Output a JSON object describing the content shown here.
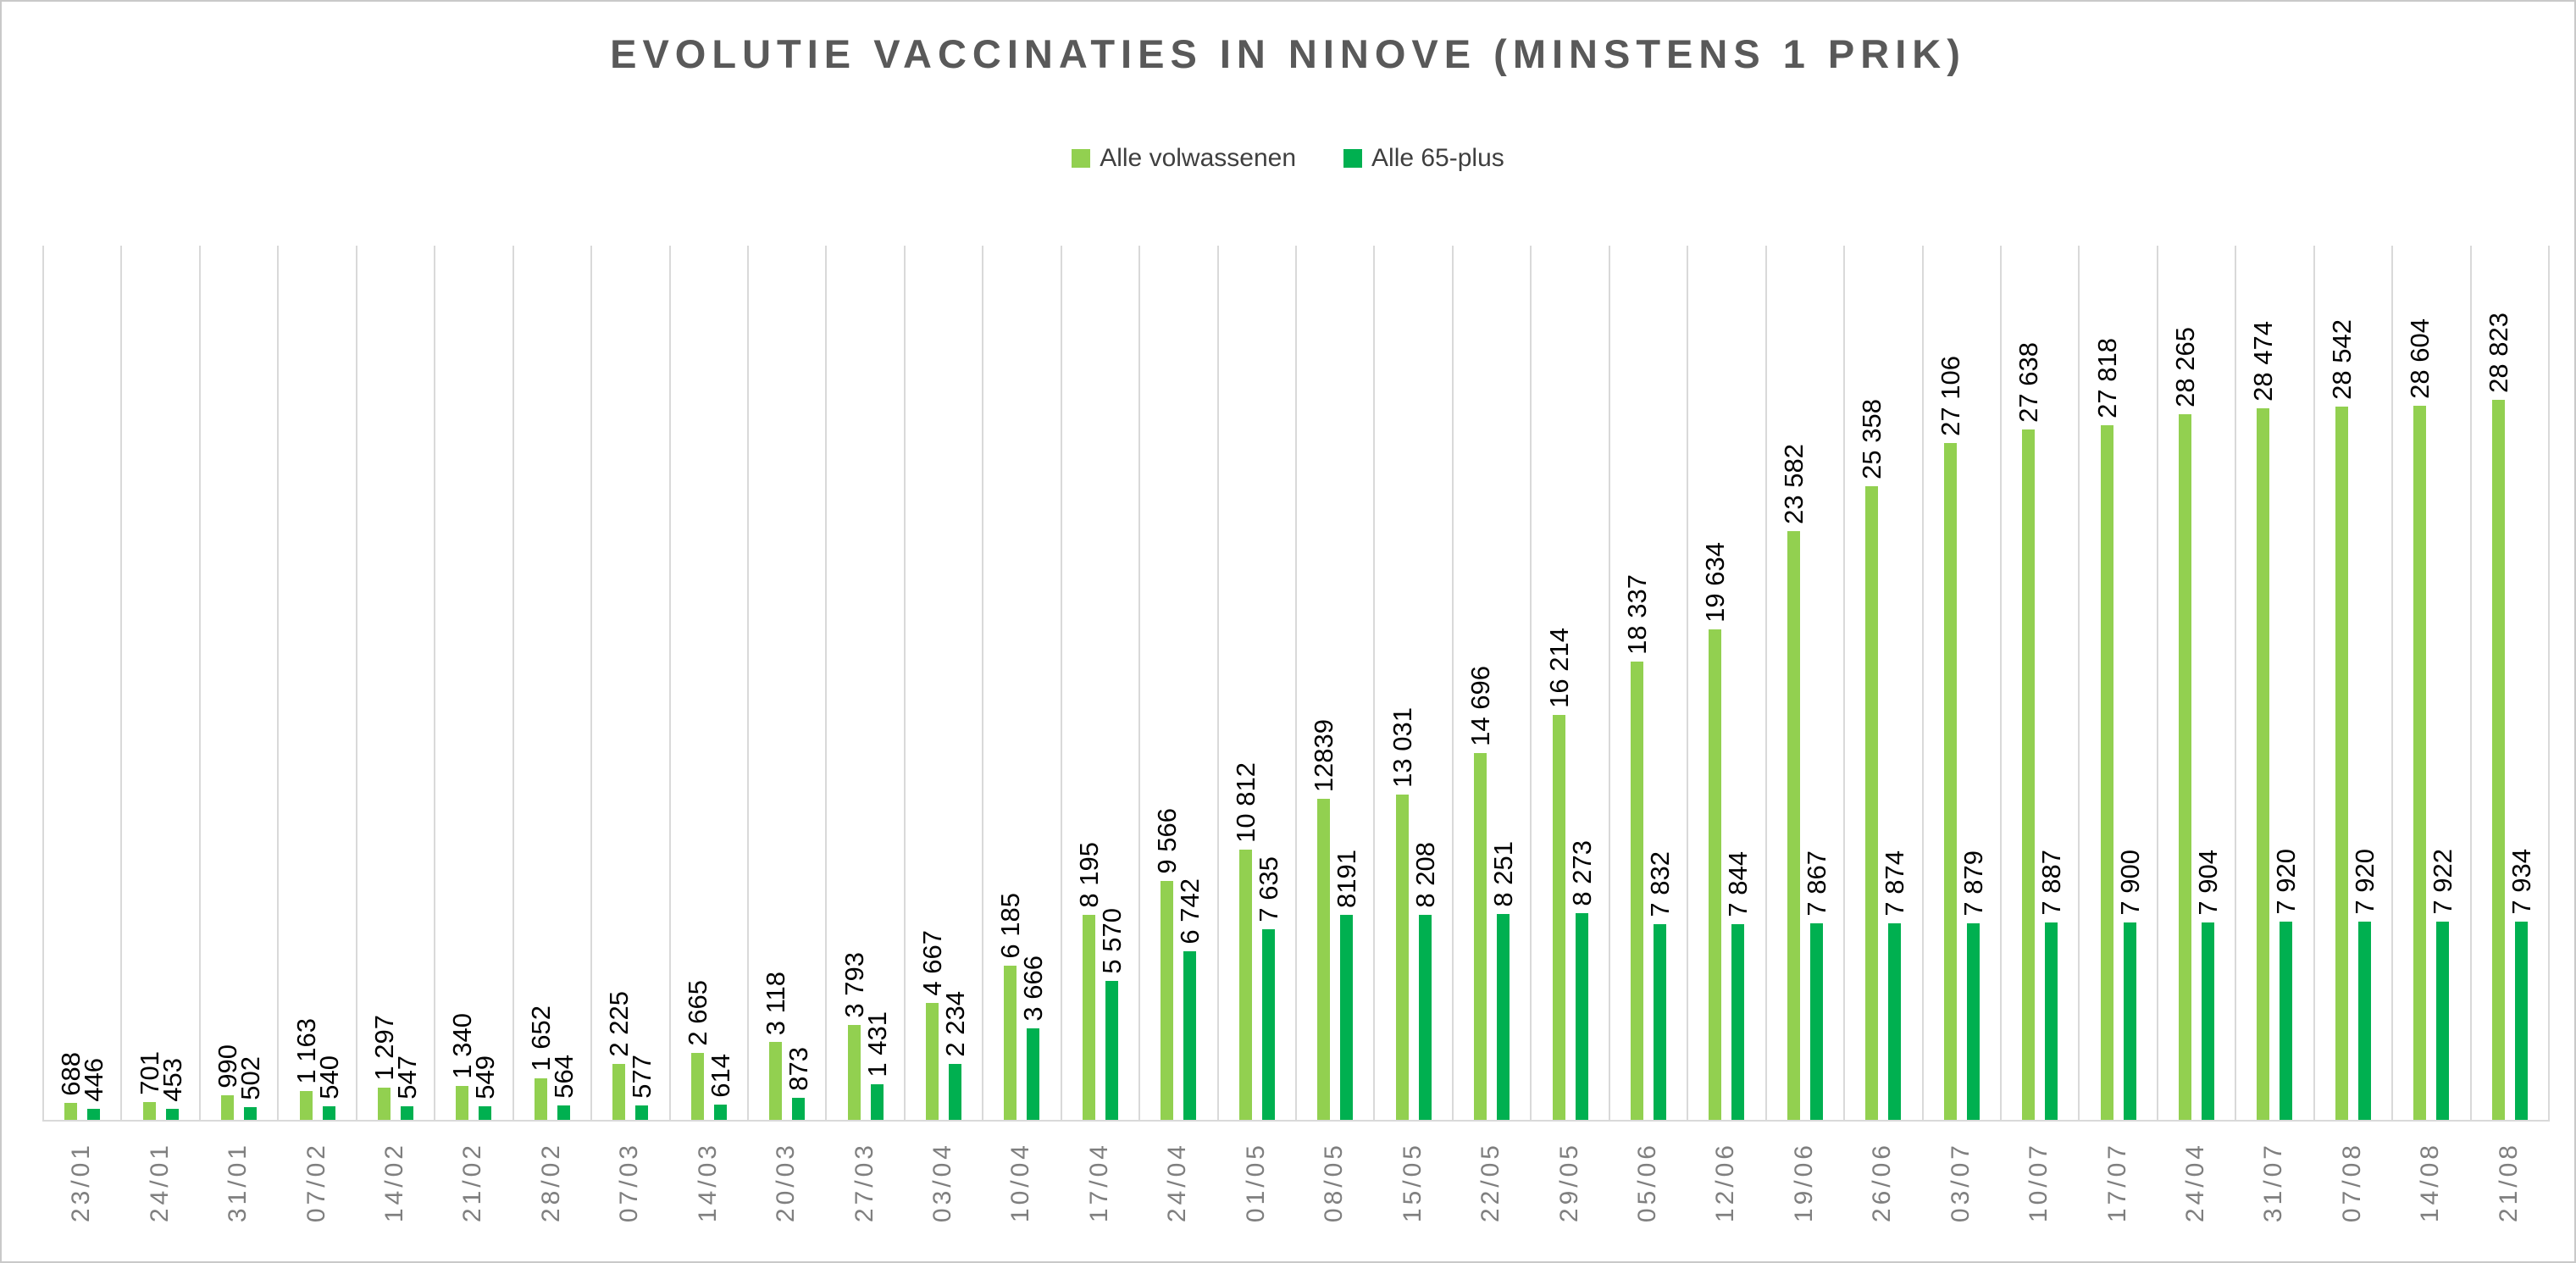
{
  "colors": {
    "series_adults": "#92D050",
    "series_65plus": "#00B050",
    "title_text": "#595959",
    "legend_text": "#3f3f3f",
    "value_label_text": "#000000",
    "date_label_text": "#7f7f7f",
    "gridline": "#d9d9d9",
    "frame_border": "#c9c9c9",
    "background": "#ffffff"
  },
  "chart_data": {
    "type": "bar",
    "title": "EVOLUTIE VACCINATIES IN NINOVE (MINSTENS 1 PRIK)",
    "legend_position": "top",
    "grid": "vertical-category-separators",
    "y_axis_visible": false,
    "ylim": [
      0,
      35000
    ],
    "bar_labels_rotated": true,
    "categories": [
      "23/01",
      "24/01",
      "31/01",
      "07/02",
      "14/02",
      "21/02",
      "28/02",
      "07/03",
      "14/03",
      "20/03",
      "27/03",
      "03/04",
      "10/04",
      "17/04",
      "24/04",
      "01/05",
      "08/05",
      "15/05",
      "22/05",
      "29/05",
      "05/06",
      "12/06",
      "19/06",
      "26/06",
      "03/07",
      "10/07",
      "17/07",
      "24/04",
      "31/07",
      "07/08",
      "14/08",
      "21/08"
    ],
    "series": [
      {
        "name": "Alle volwassenen",
        "color": "#92D050",
        "values": [
          688,
          701,
          990,
          1163,
          1297,
          1340,
          1652,
          2225,
          2665,
          3118,
          3793,
          4667,
          6185,
          8195,
          9566,
          10812,
          12839,
          13031,
          14696,
          16214,
          18337,
          19634,
          23582,
          25358,
          27106,
          27638,
          27818,
          28265,
          28474,
          28542,
          28604,
          28823
        ],
        "labels": [
          "688",
          "701",
          "990",
          "1 163",
          "1 297",
          "1 340",
          "1 652",
          "2 225",
          "2 665",
          "3 118",
          "3 793",
          "4 667",
          "6 185",
          "8 195",
          "9 566",
          "10 812",
          "12839",
          "13 031",
          "14 696",
          "16 214",
          "18 337",
          "19 634",
          "23 582",
          "25 358",
          "27 106",
          "27 638",
          "27 818",
          "28 265",
          "28 474",
          "28 542",
          "28 604",
          "28 823"
        ]
      },
      {
        "name": "Alle 65-plus",
        "color": "#00B050",
        "values": [
          446,
          453,
          502,
          540,
          547,
          549,
          564,
          577,
          614,
          873,
          1431,
          2234,
          3666,
          5570,
          6742,
          7635,
          8191,
          8208,
          8251,
          8273,
          7832,
          7844,
          7867,
          7874,
          7879,
          7887,
          7900,
          7904,
          7920,
          7920,
          7922,
          7934
        ],
        "labels": [
          "446",
          "453",
          "502",
          "540",
          "547",
          "549",
          "564",
          "577",
          "614",
          "873",
          "1 431",
          "2 234",
          "3 666",
          "5 570",
          "6 742",
          "7 635",
          "8191",
          "8 208",
          "8 251",
          "8 273",
          "7 832",
          "7 844",
          "7 867",
          "7 874",
          "7 879",
          "7 887",
          "7 900",
          "7 904",
          "7 920",
          "7 920",
          "7 922",
          "7 934"
        ]
      }
    ]
  }
}
